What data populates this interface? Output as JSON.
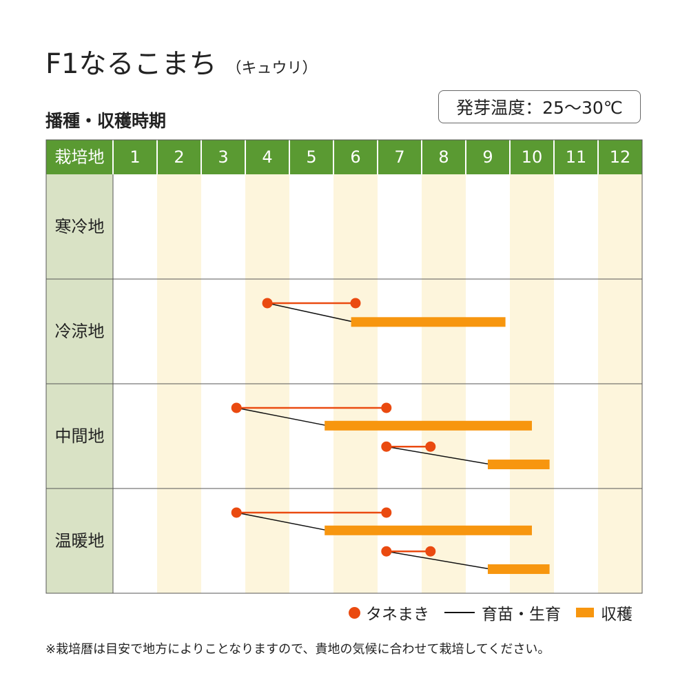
{
  "title": {
    "main": "F1なるこまち",
    "sub": "（キュウリ）"
  },
  "section_title": "播種・収穫時期",
  "germination": "発芽温度：25～30℃",
  "colors": {
    "header_green": "#5a9a32",
    "region_bg": "#d9e2c5",
    "stripe": "#fdf5dc",
    "sowing": "#ea4a10",
    "growing": "#111111",
    "harvest": "#f7960f"
  },
  "legend": {
    "sowing": "タネまき",
    "growing": "育苗・生育",
    "harvest": "収穫"
  },
  "note": "※栽培暦は目安で地方によりことなりますので、貴地の気候に合わせて栽培してください。",
  "chart_data": {
    "type": "gantt",
    "corner_label": "栽培地",
    "months": [
      "1",
      "2",
      "3",
      "4",
      "5",
      "6",
      "7",
      "8",
      "9",
      "10",
      "11",
      "12"
    ],
    "regions": [
      {
        "name": "寒冷地",
        "schedules": []
      },
      {
        "name": "冷涼地",
        "schedules": [
          {
            "sow_start": 4.5,
            "sow_end": 6.5,
            "harvest_start": 6.4,
            "harvest_end": 9.9
          }
        ]
      },
      {
        "name": "中間地",
        "schedules": [
          {
            "sow_start": 3.8,
            "sow_end": 7.2,
            "harvest_start": 5.8,
            "harvest_end": 10.5
          },
          {
            "sow_start": 7.2,
            "sow_end": 8.2,
            "harvest_start": 9.5,
            "harvest_end": 10.9
          }
        ]
      },
      {
        "name": "温暖地",
        "schedules": [
          {
            "sow_start": 3.8,
            "sow_end": 7.2,
            "harvest_start": 5.8,
            "harvest_end": 10.5
          },
          {
            "sow_start": 7.2,
            "sow_end": 8.2,
            "harvest_start": 9.5,
            "harvest_end": 10.9
          }
        ]
      }
    ]
  }
}
